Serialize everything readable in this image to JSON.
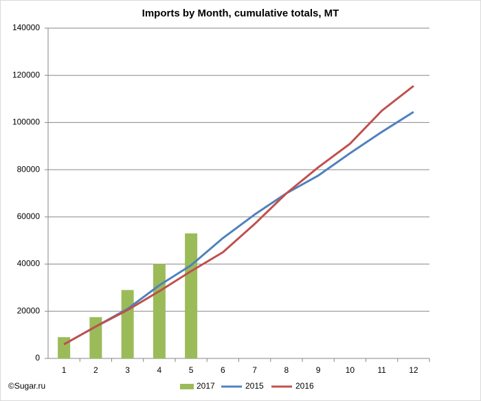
{
  "chart_data": {
    "type": "combo",
    "title": "Imports by Month, cumulative totals, MT",
    "source": "©Sugar.ru",
    "categories": [
      "1",
      "2",
      "3",
      "4",
      "5",
      "6",
      "7",
      "8",
      "9",
      "10",
      "11",
      "12"
    ],
    "series": [
      {
        "name": "2017",
        "type": "bar",
        "color": "#9bbb59",
        "values": [
          9000,
          17500,
          29000,
          40000,
          53000,
          null,
          null,
          null,
          null,
          null,
          null,
          null
        ]
      },
      {
        "name": "2015",
        "type": "line",
        "color": "#4f81bd",
        "values": [
          6000,
          13500,
          21000,
          31000,
          39500,
          51000,
          61000,
          70000,
          77500,
          87000,
          96000,
          104500
        ]
      },
      {
        "name": "2016",
        "type": "line",
        "color": "#c0504d",
        "values": [
          6000,
          13500,
          20500,
          28500,
          37000,
          45000,
          57000,
          70000,
          81000,
          91000,
          105000,
          115500
        ]
      }
    ],
    "ylim": [
      0,
      140000
    ],
    "yticks": [
      0,
      20000,
      40000,
      60000,
      80000,
      100000,
      120000,
      140000
    ],
    "grid": true,
    "legend": "bottom"
  }
}
